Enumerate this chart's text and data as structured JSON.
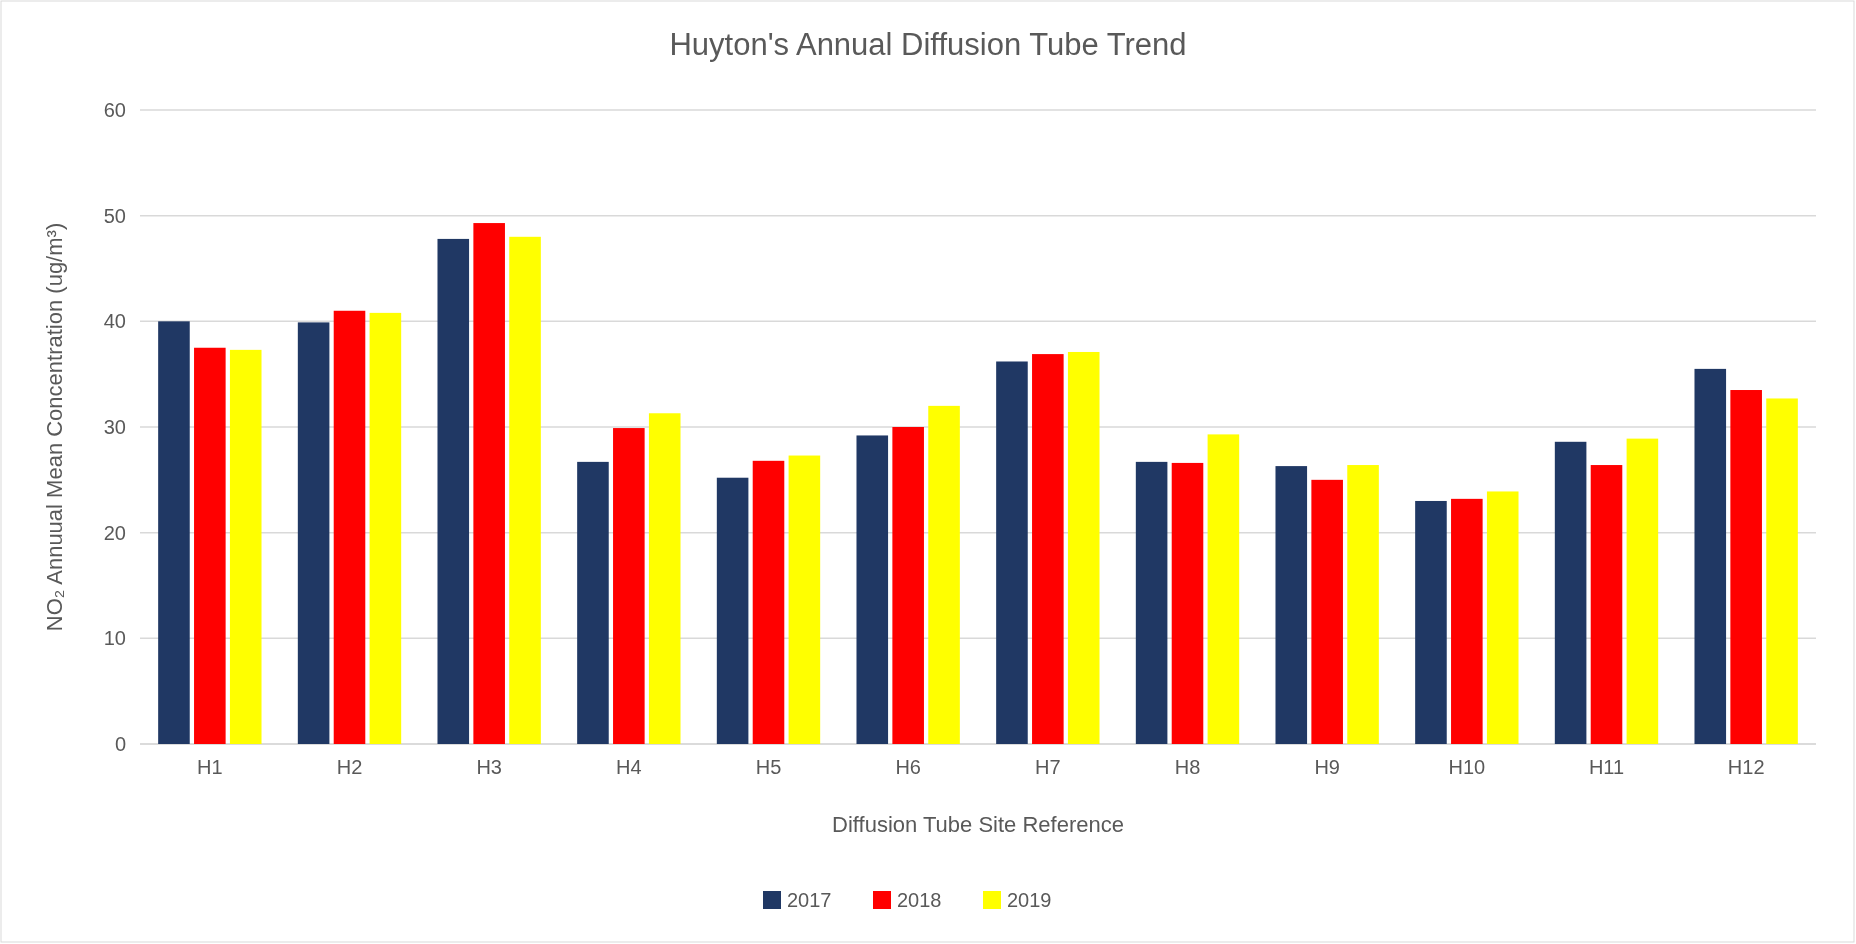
{
  "chart_data": {
    "type": "bar",
    "title": "Huyton's Annual Diffusion Tube Trend",
    "xlabel": "Diffusion Tube Site Reference",
    "ylabel": "NO₂ Annuual Mean Concentration (ug/m³)",
    "categories": [
      "H1",
      "H2",
      "H3",
      "H4",
      "H5",
      "H6",
      "H7",
      "H8",
      "H9",
      "H10",
      "H11",
      "H12"
    ],
    "series": [
      {
        "name": "2017",
        "color": "#203864",
        "values": [
          40.0,
          39.9,
          47.8,
          26.7,
          25.2,
          29.2,
          36.2,
          26.7,
          26.3,
          23.0,
          28.6,
          35.5
        ]
      },
      {
        "name": "2018",
        "color": "#ff0000",
        "values": [
          37.5,
          41.0,
          49.3,
          29.9,
          26.8,
          30.0,
          36.9,
          26.6,
          25.0,
          23.2,
          26.4,
          33.5
        ]
      },
      {
        "name": "2019",
        "color": "#ffff00",
        "values": [
          37.3,
          40.8,
          48.0,
          31.3,
          27.3,
          32.0,
          37.1,
          29.3,
          26.4,
          23.9,
          28.9,
          32.7
        ]
      }
    ],
    "ylim": [
      0,
      60
    ],
    "yticks": [
      0,
      10,
      20,
      30,
      40,
      50,
      60
    ],
    "grid": "y",
    "legend": "bottom"
  }
}
